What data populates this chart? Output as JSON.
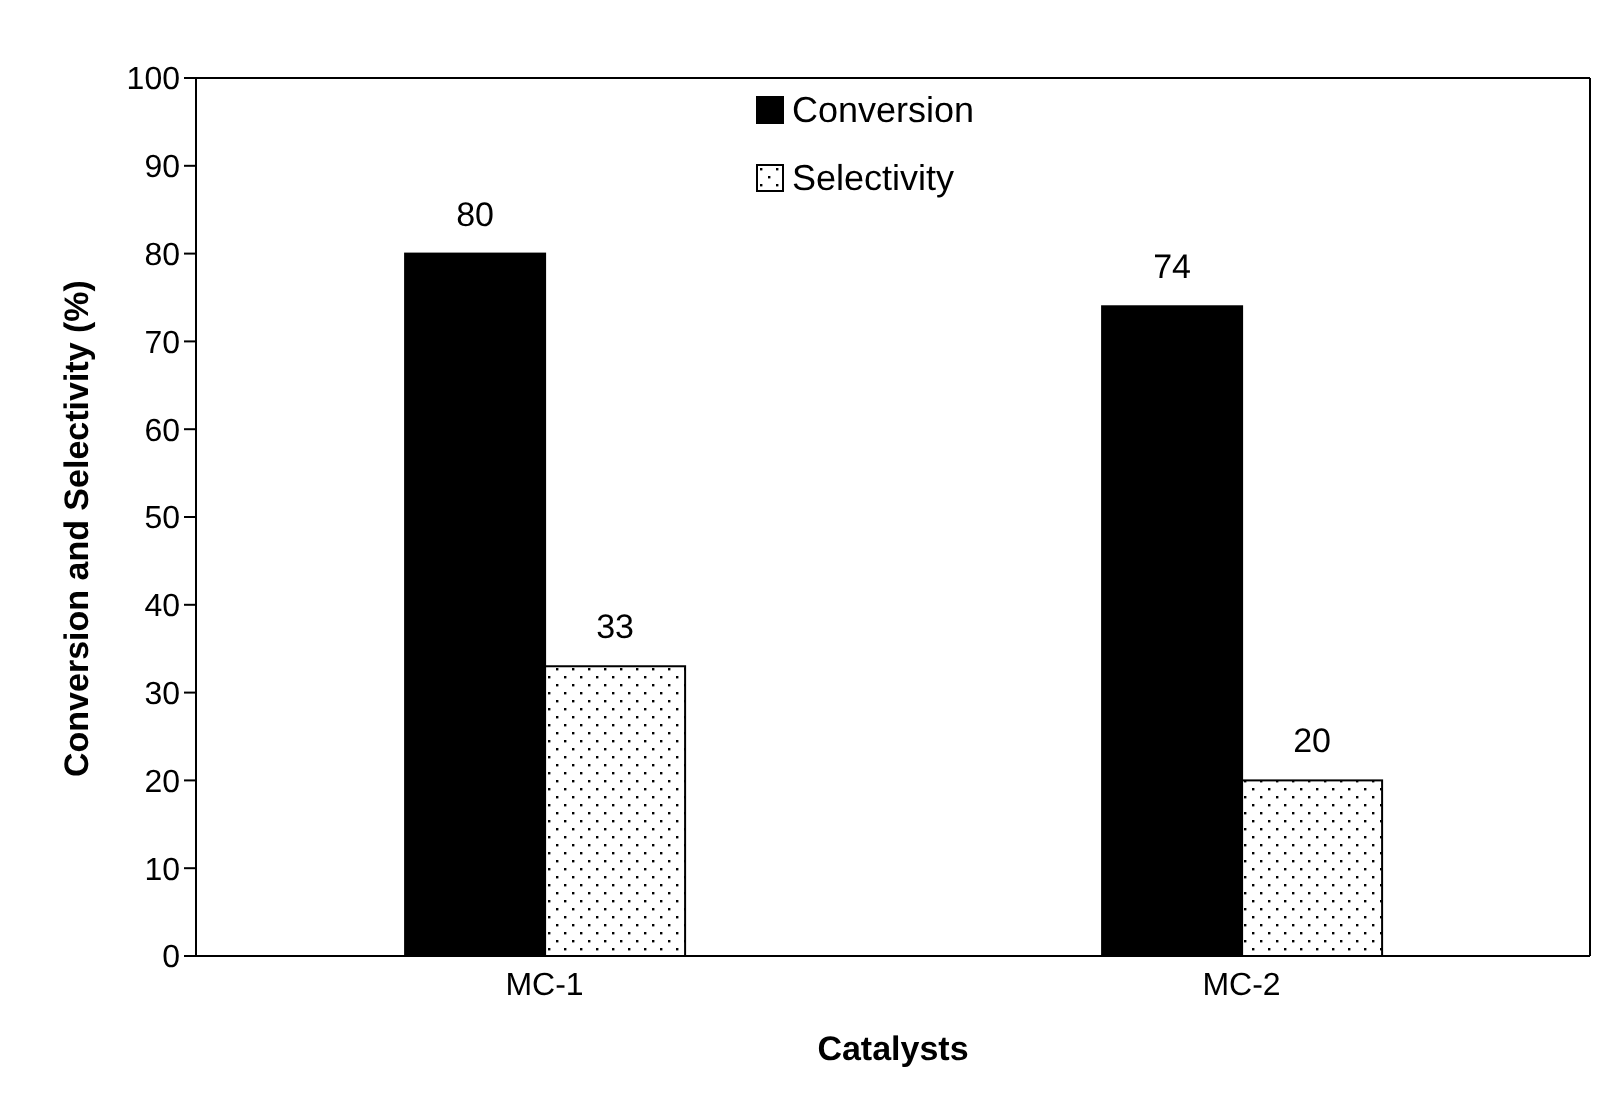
{
  "chart_data": {
    "type": "bar",
    "xlabel": "Catalysts",
    "ylabel": "Conversion and Selectivity (%)",
    "categories": [
      "MC-1",
      "MC-2"
    ],
    "series": [
      {
        "name": "Conversion",
        "color": "#000000",
        "values": [
          80,
          74
        ]
      },
      {
        "name": "Selectivity",
        "color": "#ffffff",
        "values": [
          33,
          20
        ]
      }
    ],
    "ylim": [
      0,
      100
    ],
    "yticks": [
      0,
      10,
      20,
      30,
      40,
      50,
      60,
      70,
      80,
      90,
      100
    ],
    "grid": false,
    "legend": "top",
    "data_labels": true
  }
}
